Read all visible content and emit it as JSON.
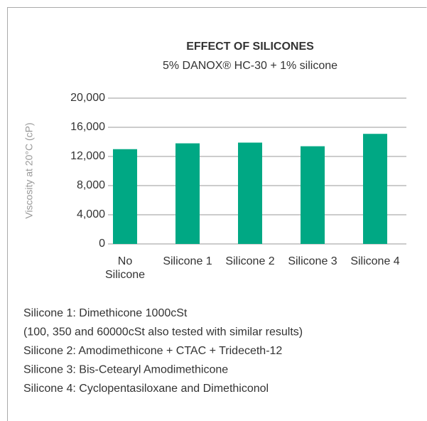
{
  "chart_data": {
    "type": "bar",
    "title": "EFFECT OF SILICONES",
    "subtitle": "5% DANOX® HC-30 + 1% silicone",
    "y_label": "Viscosity at 20°C (cP)",
    "categories": [
      "No\nSilicone",
      "Silicone 1",
      "Silicone 2",
      "Silicone 3",
      "Silicone 4"
    ],
    "values": [
      13000,
      13800,
      13900,
      13400,
      15100
    ],
    "color": "#00a884",
    "ylim": [
      0,
      20000
    ],
    "yticks": [
      {
        "value": 0,
        "label": "0"
      },
      {
        "value": 4000,
        "label": "4,000"
      },
      {
        "value": 8000,
        "label": "8,000"
      },
      {
        "value": 12000,
        "label": "12,000"
      },
      {
        "value": 16000,
        "label": "16,000"
      },
      {
        "value": 20000,
        "label": "20,000"
      }
    ],
    "grid": true,
    "notes": [
      "Silicone 1: Dimethicone 1000cSt",
      "(100, 350 and 60000cSt also tested with similar results)",
      "Silicone 2: Amodimethicone + CTAC + Trideceth-12",
      "Silicone 3: Bis-Cetearyl Amodimethicone",
      "Silicone 4: Cyclopentasiloxane and Dimethiconol"
    ]
  }
}
